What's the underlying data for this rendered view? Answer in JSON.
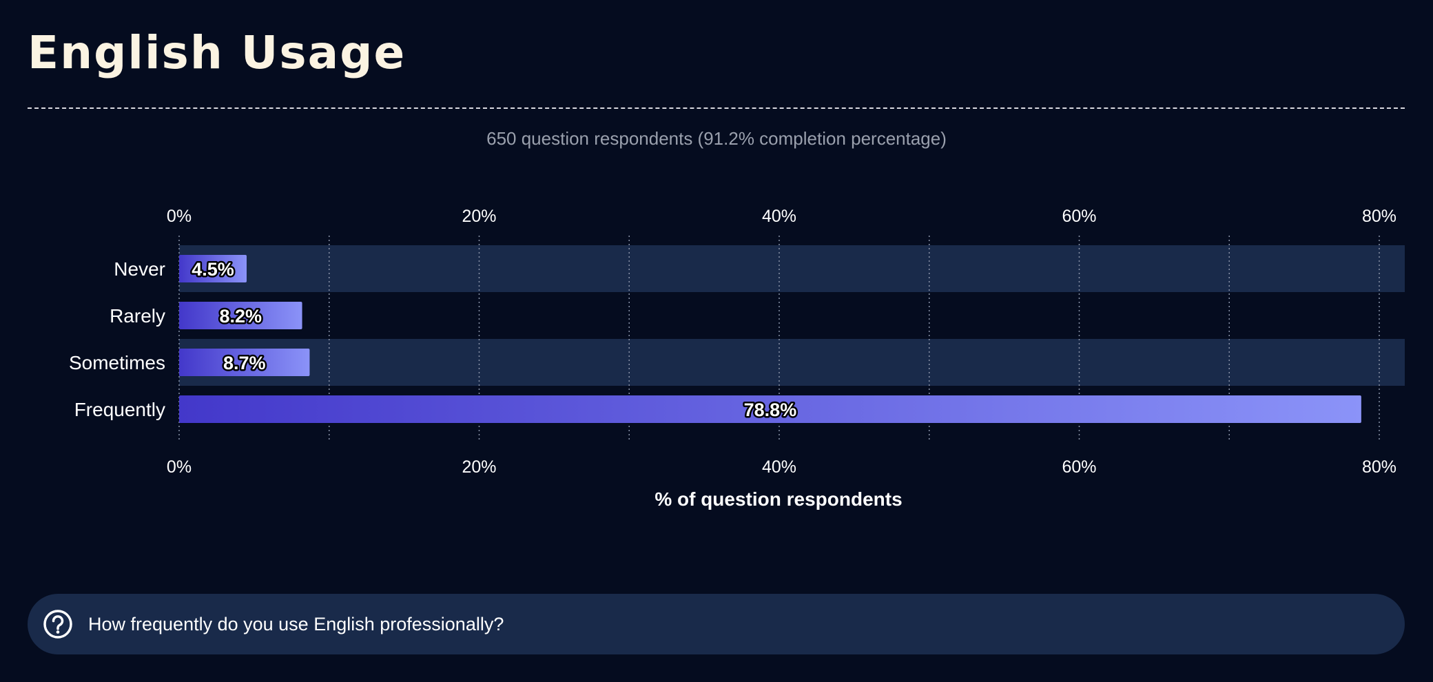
{
  "page": {
    "title": "English Usage",
    "subtitle": "650 question respondents (91.2% completion percentage)",
    "question": "How frequently do you use English professionally?",
    "question_icon": "question-circle-icon"
  },
  "colors": {
    "background": "#050c1f",
    "title": "#fbf3e2",
    "band": "#192a4a",
    "bar_start": "#4338ca",
    "bar_end": "#8b93f8"
  },
  "chart_data": {
    "type": "bar",
    "orientation": "horizontal",
    "categories": [
      "Never",
      "Rarely",
      "Sometimes",
      "Frequently"
    ],
    "values": [
      4.5,
      8.2,
      8.7,
      78.8
    ],
    "data_labels": [
      "4.5%",
      "8.2%",
      "8.7%",
      "78.8%"
    ],
    "xlabel": "% of question respondents",
    "xlim": [
      0,
      82
    ],
    "ticks": [
      0,
      20,
      40,
      60,
      80
    ],
    "tick_labels": [
      "0%",
      "20%",
      "40%",
      "60%",
      "80%"
    ],
    "minor_gridlines": [
      10,
      30,
      50,
      70
    ],
    "grid": true
  }
}
